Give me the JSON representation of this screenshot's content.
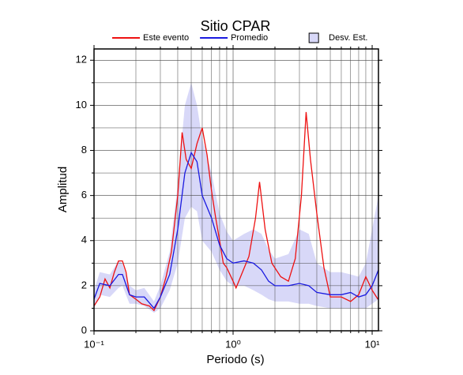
{
  "chart_data": {
    "type": "line",
    "title": "Sitio CPAR",
    "x_label": "Periodo (s)",
    "y_label": "Amplitud",
    "xscale": "log",
    "grid": true,
    "xlim": [
      0.1,
      11.1
    ],
    "ylim": [
      0,
      12.5
    ],
    "xticks": [
      {
        "value": 0.1,
        "label": "10⁻¹"
      },
      {
        "value": 1,
        "label": "10⁰"
      },
      {
        "value": 10,
        "label": "10¹"
      }
    ],
    "xminorticks": [
      0.2,
      0.3,
      0.4,
      0.5,
      0.6,
      0.7,
      0.8,
      0.9,
      2,
      3,
      4,
      5,
      6,
      7,
      8,
      9
    ],
    "yticks": [
      0,
      2,
      4,
      6,
      8,
      10,
      12
    ],
    "yminorticks": [
      1,
      3,
      5,
      7,
      9,
      11
    ],
    "legend": "top",
    "band": {
      "name": "Desv. Est.",
      "color": "#d8d8f8",
      "x": [
        0.1,
        0.11,
        0.13,
        0.15,
        0.16,
        0.18,
        0.2,
        0.23,
        0.27,
        0.3,
        0.35,
        0.4,
        0.45,
        0.5,
        0.55,
        0.6,
        0.7,
        0.8,
        0.9,
        1.0,
        1.2,
        1.4,
        1.6,
        1.8,
        2.0,
        2.5,
        3.0,
        3.5,
        4.0,
        5.0,
        6,
        7,
        8,
        9,
        10,
        11.1
      ],
      "lower": [
        1.0,
        1.6,
        1.5,
        1.9,
        2.0,
        1.2,
        1.2,
        1.1,
        0.8,
        1.0,
        1.8,
        3.0,
        5.0,
        5.5,
        5.3,
        4.0,
        3.5,
        2.7,
        2.2,
        2.0,
        2.0,
        1.8,
        1.6,
        1.4,
        1.3,
        1.3,
        1.2,
        1.2,
        1.1,
        1.0,
        1.0,
        1.0,
        1.0,
        1.0,
        1.2,
        1.4
      ],
      "upper": [
        1.8,
        2.6,
        2.5,
        3.1,
        3.0,
        2.0,
        1.8,
        1.9,
        1.3,
        2.0,
        3.5,
        6.5,
        10.0,
        11.0,
        10.0,
        8.5,
        7.0,
        5.2,
        4.4,
        4.0,
        4.3,
        4.5,
        4.3,
        3.6,
        3.2,
        3.4,
        4.5,
        4.3,
        3.0,
        2.6,
        2.6,
        2.5,
        2.4,
        3.0,
        4.5,
        6.0
      ]
    },
    "series": [
      {
        "name": "Este evento",
        "color": "#ee1111",
        "x": [
          0.1,
          0.11,
          0.12,
          0.13,
          0.14,
          0.15,
          0.16,
          0.17,
          0.18,
          0.2,
          0.22,
          0.25,
          0.27,
          0.3,
          0.33,
          0.36,
          0.4,
          0.43,
          0.46,
          0.5,
          0.55,
          0.6,
          0.65,
          0.7,
          0.75,
          0.8,
          0.85,
          0.9,
          1.0,
          1.05,
          1.15,
          1.3,
          1.45,
          1.55,
          1.7,
          1.9,
          2.2,
          2.5,
          2.8,
          3.1,
          3.35,
          3.6,
          4.0,
          4.5,
          5.0,
          6,
          7,
          8,
          9,
          10,
          11
        ],
        "values": [
          1.1,
          1.5,
          2.3,
          1.9,
          2.6,
          3.1,
          3.1,
          2.6,
          1.6,
          1.4,
          1.2,
          1.1,
          0.9,
          1.5,
          2.4,
          3.5,
          6.0,
          8.8,
          7.6,
          7.2,
          8.3,
          9.0,
          7.8,
          6.2,
          5.0,
          4.0,
          3.0,
          2.8,
          2.2,
          1.9,
          2.5,
          3.3,
          5.0,
          6.6,
          4.5,
          3.0,
          2.4,
          2.2,
          3.2,
          6.0,
          9.7,
          7.6,
          5.2,
          2.8,
          1.5,
          1.5,
          1.3,
          1.6,
          2.4,
          1.8,
          1.4
        ]
      },
      {
        "name": "Promedio",
        "color": "#1a1ae0",
        "x": [
          0.1,
          0.11,
          0.13,
          0.15,
          0.16,
          0.18,
          0.2,
          0.23,
          0.27,
          0.3,
          0.35,
          0.4,
          0.45,
          0.5,
          0.55,
          0.6,
          0.7,
          0.8,
          0.9,
          1.0,
          1.2,
          1.4,
          1.6,
          1.8,
          2.0,
          2.5,
          3.0,
          3.5,
          4.0,
          5.0,
          6,
          7,
          8,
          9,
          10,
          11.1
        ],
        "values": [
          1.4,
          2.1,
          2.0,
          2.5,
          2.5,
          1.6,
          1.5,
          1.5,
          1.0,
          1.5,
          2.5,
          4.5,
          7.0,
          7.9,
          7.5,
          6.0,
          5.0,
          3.8,
          3.2,
          3.0,
          3.1,
          3.0,
          2.7,
          2.2,
          2.0,
          2.0,
          2.1,
          2.0,
          1.7,
          1.6,
          1.6,
          1.7,
          1.5,
          1.6,
          2.0,
          2.7
        ]
      }
    ]
  }
}
